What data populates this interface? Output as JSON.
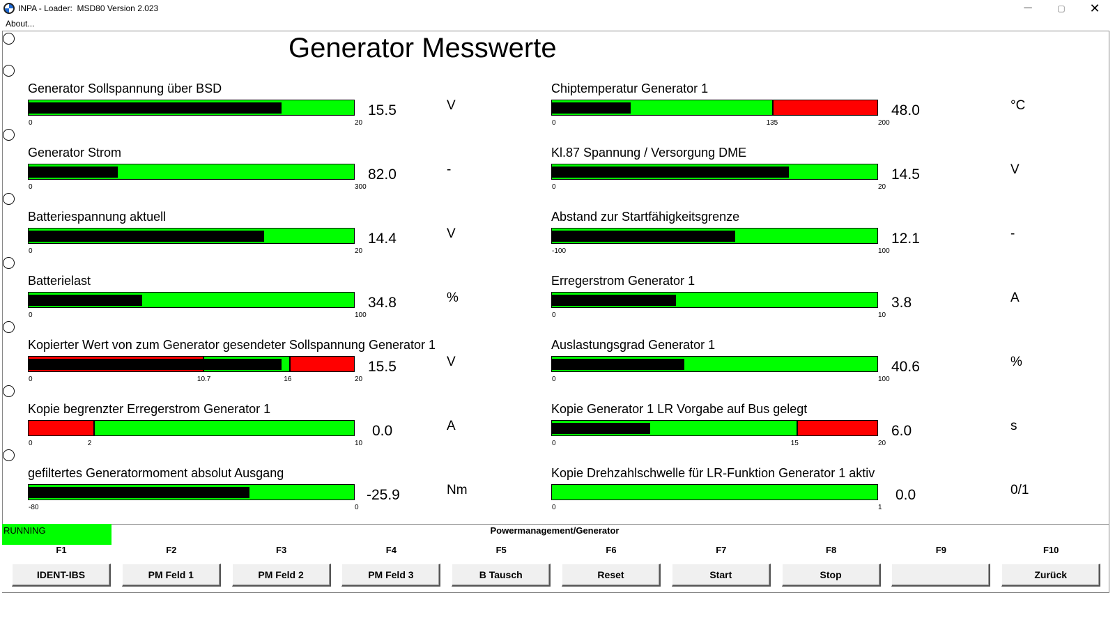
{
  "window": {
    "title": "INPA - Loader:  MSD80 Version 2.023",
    "min": "─",
    "max": "▢",
    "close": "✕"
  },
  "menu": {
    "about": "About..."
  },
  "heading": "Generator Messwerte",
  "colors": {
    "green": "#00ff00",
    "red": "#ff0000",
    "black": "#000000"
  },
  "gauges": [
    {
      "label": "Generator Sollspannung über BSD",
      "value": "15.5",
      "unit": "V",
      "min": 0,
      "max": 20,
      "level": 15.5,
      "ticks": [
        {
          "text": "0",
          "v": 0
        },
        {
          "text": "20",
          "v": 20
        }
      ],
      "red": []
    },
    {
      "label": "Chiptemperatur Generator 1",
      "value": "48.0",
      "unit": "°C",
      "min": 0,
      "max": 200,
      "level": 48,
      "ticks": [
        {
          "text": "0",
          "v": 0
        },
        {
          "text": "135",
          "v": 135
        },
        {
          "text": "200",
          "v": 200
        }
      ],
      "red": [
        [
          135,
          200
        ]
      ]
    },
    {
      "label": "Generator Strom",
      "value": "82.0",
      "unit": "-",
      "min": 0,
      "max": 300,
      "level": 82,
      "ticks": [
        {
          "text": "0",
          "v": 0
        },
        {
          "text": "300",
          "v": 300
        }
      ],
      "red": []
    },
    {
      "label": "Kl.87 Spannung / Versorgung DME",
      "value": "14.5",
      "unit": "V",
      "min": 0,
      "max": 20,
      "level": 14.5,
      "ticks": [
        {
          "text": "0",
          "v": 0
        },
        {
          "text": "20",
          "v": 20
        }
      ],
      "red": []
    },
    {
      "label": "Batteriespannung aktuell",
      "value": "14.4",
      "unit": "V",
      "min": 0,
      "max": 20,
      "level": 14.4,
      "ticks": [
        {
          "text": "0",
          "v": 0
        },
        {
          "text": "20",
          "v": 20
        }
      ],
      "red": []
    },
    {
      "label": "Abstand zur Startfähigkeitsgrenze",
      "value": "12.1",
      "unit": "-",
      "min": -100,
      "max": 100,
      "level": 12.1,
      "ticks": [
        {
          "text": "-100",
          "v": -100
        },
        {
          "text": "100",
          "v": 100
        }
      ],
      "red": []
    },
    {
      "label": "Batterielast",
      "value": "34.8",
      "unit": "%",
      "min": 0,
      "max": 100,
      "level": 34.8,
      "ticks": [
        {
          "text": "0",
          "v": 0
        },
        {
          "text": "100",
          "v": 100
        }
      ],
      "red": []
    },
    {
      "label": "Erregerstrom Generator 1",
      "value": "3.8",
      "unit": "A",
      "min": 0,
      "max": 10,
      "level": 3.8,
      "ticks": [
        {
          "text": "0",
          "v": 0
        },
        {
          "text": "10",
          "v": 10
        }
      ],
      "red": []
    },
    {
      "label": "Kopierter Wert von zum Generator gesendeter Sollspannung Generator 1",
      "value": "15.5",
      "unit": "V",
      "min": 0,
      "max": 20,
      "level": 15.5,
      "ticks": [
        {
          "text": "0",
          "v": 0
        },
        {
          "text": "10.7",
          "v": 10.7
        },
        {
          "text": "16",
          "v": 16
        },
        {
          "text": "20",
          "v": 20
        }
      ],
      "red": [
        [
          0,
          10.7
        ],
        [
          16,
          20
        ]
      ]
    },
    {
      "label": "Auslastungsgrad Generator 1",
      "value": "40.6",
      "unit": "%",
      "min": 0,
      "max": 100,
      "level": 40.6,
      "ticks": [
        {
          "text": "0",
          "v": 0
        },
        {
          "text": "100",
          "v": 100
        }
      ],
      "red": []
    },
    {
      "label": "Kopie begrenzter Erregerstrom Generator 1",
      "value": "0.0",
      "unit": "A",
      "min": 0,
      "max": 10,
      "level": 0,
      "ticks": [
        {
          "text": "0",
          "v": 0
        },
        {
          "text": "2",
          "v": 2
        },
        {
          "text": "10",
          "v": 10
        }
      ],
      "red": [
        [
          0,
          2
        ]
      ]
    },
    {
      "label": "Kopie Generator 1 LR Vorgabe auf Bus gelegt",
      "value": "6.0",
      "unit": "s",
      "min": 0,
      "max": 20,
      "level": 6,
      "ticks": [
        {
          "text": "0",
          "v": 0
        },
        {
          "text": "15",
          "v": 15
        },
        {
          "text": "20",
          "v": 20
        }
      ],
      "red": [
        [
          15,
          20
        ]
      ]
    },
    {
      "label": "gefiltertes Generatormoment absolut Ausgang",
      "value": "-25.9",
      "unit": "Nm",
      "min": -80,
      "max": 0,
      "level": -25.9,
      "ticks": [
        {
          "text": "-80",
          "v": -80
        },
        {
          "text": "0",
          "v": 0
        }
      ],
      "red": []
    },
    {
      "label": "Kopie Drehzahlschwelle für LR-Funktion Generator 1 aktiv",
      "value": "0.0",
      "unit": "0/1",
      "min": 0,
      "max": 1,
      "level": 0,
      "ticks": [
        {
          "text": "0",
          "v": 0
        },
        {
          "text": "1",
          "v": 1
        }
      ],
      "red": []
    }
  ],
  "status": {
    "text": "RUNNING",
    "context": "Powermanagement/Generator"
  },
  "fkeys": [
    {
      "key": "F1",
      "label": "IDENT-IBS"
    },
    {
      "key": "F2",
      "label": "PM Feld 1"
    },
    {
      "key": "F3",
      "label": "PM Feld 2"
    },
    {
      "key": "F4",
      "label": "PM Feld 3"
    },
    {
      "key": "F5",
      "label": "B Tausch"
    },
    {
      "key": "F6",
      "label": "Reset"
    },
    {
      "key": "F7",
      "label": "Start"
    },
    {
      "key": "F8",
      "label": "Stop"
    },
    {
      "key": "F9",
      "label": ""
    },
    {
      "key": "F10",
      "label": "Zurück"
    }
  ]
}
